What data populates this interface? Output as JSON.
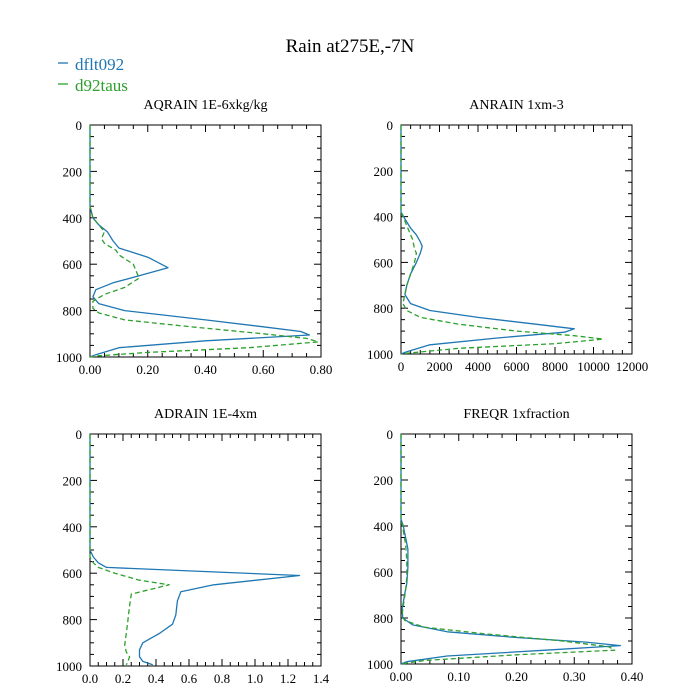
{
  "title": "Rain at275E,-7N",
  "colors": {
    "dflt092": "#1f77b4",
    "d92taus": "#2ca02c",
    "axis": "#000000"
  },
  "legend": [
    {
      "name": "dflt092",
      "color": "#1f77b4",
      "style": "solid"
    },
    {
      "name": "d92taus",
      "color": "#2ca02c",
      "style": "dashed"
    }
  ],
  "chart_data": [
    {
      "type": "line",
      "title": "AQRAIN  1E-6xkg/kg",
      "ylim": [
        1000,
        0
      ],
      "yticks": [
        0,
        200,
        400,
        600,
        800,
        1000
      ],
      "xlim": [
        0,
        0.8
      ],
      "xticks": [
        0,
        0.2,
        0.4,
        0.6,
        0.8
      ],
      "xticklabels": [
        "0.00",
        "0.20",
        "0.40",
        "0.60",
        "0.80"
      ],
      "series": [
        {
          "name": "dflt092",
          "x": [
            0,
            0,
            0.01,
            0.03,
            0.06,
            0.08,
            0.1,
            0.2,
            0.27,
            0.17,
            0.08,
            0.02,
            0.01,
            0.03,
            0.12,
            0.4,
            0.6,
            0.73,
            0.76,
            0.4,
            0.1,
            0.02,
            0
          ],
          "y": [
            0,
            350,
            400,
            430,
            460,
            500,
            530,
            570,
            615,
            650,
            680,
            710,
            740,
            770,
            800,
            840,
            870,
            890,
            905,
            930,
            960,
            990,
            1000
          ]
        },
        {
          "name": "d92taus",
          "x": [
            0,
            0,
            0.01,
            0.03,
            0.05,
            0.04,
            0.05,
            0.09,
            0.1,
            0.15,
            0.17,
            0.12,
            0.05,
            0.01,
            0.01,
            0.03,
            0.12,
            0.35,
            0.6,
            0.75,
            0.79,
            0.55,
            0.2,
            0.03,
            0
          ],
          "y": [
            0,
            350,
            400,
            430,
            460,
            490,
            510,
            540,
            560,
            600,
            660,
            700,
            730,
            760,
            790,
            810,
            840,
            870,
            900,
            920,
            935,
            960,
            980,
            995,
            1000
          ]
        }
      ]
    },
    {
      "type": "line",
      "title": "ANRAIN  1xm-3",
      "ylim": [
        1000,
        0
      ],
      "yticks": [
        0,
        200,
        400,
        600,
        800,
        1000
      ],
      "xlim": [
        0,
        12000
      ],
      "xticks": [
        0,
        2000,
        4000,
        6000,
        8000,
        10000,
        12000
      ],
      "xticklabels": [
        "0",
        "2000",
        "4000",
        "6000",
        "8000",
        "10000",
        "12000"
      ],
      "series": [
        {
          "name": "dflt092",
          "x": [
            0,
            0,
            200,
            500,
            800,
            1000,
            1100,
            1000,
            800,
            500,
            300,
            200,
            500,
            1500,
            4000,
            7000,
            9000,
            8500,
            5000,
            1500,
            300,
            0
          ],
          "y": [
            0,
            380,
            410,
            450,
            480,
            510,
            530,
            560,
            600,
            650,
            700,
            740,
            780,
            810,
            840,
            870,
            890,
            905,
            930,
            960,
            990,
            1000
          ]
        },
        {
          "name": "d92taus",
          "x": [
            0,
            0,
            200,
            400,
            600,
            700,
            800,
            700,
            500,
            300,
            200,
            100,
            300,
            1000,
            3000,
            6000,
            9000,
            10500,
            8000,
            3000,
            500,
            0
          ],
          "y": [
            0,
            380,
            420,
            460,
            500,
            540,
            560,
            600,
            650,
            700,
            740,
            780,
            810,
            840,
            870,
            900,
            920,
            935,
            955,
            975,
            995,
            1000
          ]
        }
      ]
    },
    {
      "type": "line",
      "title": "ADRAIN  1E-4xm",
      "ylim": [
        1000,
        0
      ],
      "yticks": [
        0,
        200,
        400,
        600,
        800,
        1000
      ],
      "xlim": [
        0,
        1.4
      ],
      "xticks": [
        0,
        0.2,
        0.4,
        0.6,
        0.8,
        1.0,
        1.2,
        1.4
      ],
      "xticklabels": [
        "0.0",
        "0.2",
        "0.4",
        "0.6",
        "0.8",
        "1.0",
        "1.2",
        "1.4"
      ],
      "series": [
        {
          "name": "dflt092",
          "x": [
            0,
            0,
            0.02,
            0.05,
            0.1,
            0.6,
            1.27,
            0.75,
            0.55,
            0.53,
            0.52,
            0.5,
            0.42,
            0.32,
            0.3,
            0.3,
            0.32,
            0.38
          ],
          "y": [
            0,
            500,
            530,
            555,
            575,
            590,
            610,
            650,
            680,
            720,
            780,
            820,
            860,
            900,
            930,
            960,
            980,
            995
          ]
        },
        {
          "name": "d92taus",
          "x": [
            0,
            0,
            0.02,
            0.05,
            0.15,
            0.3,
            0.48,
            0.25,
            0.24,
            0.23,
            0.22,
            0.21,
            0.22,
            0.24,
            0.23,
            0.22
          ],
          "y": [
            0,
            530,
            555,
            575,
            600,
            630,
            650,
            690,
            740,
            800,
            860,
            910,
            940,
            960,
            980,
            995
          ]
        }
      ]
    },
    {
      "type": "line",
      "title": "FREQR  1xfraction",
      "ylim": [
        1000,
        0
      ],
      "yticks": [
        0,
        200,
        400,
        600,
        800,
        1000
      ],
      "xlim": [
        0,
        0.4
      ],
      "xticks": [
        0,
        0.1,
        0.2,
        0.3,
        0.4
      ],
      "xticklabels": [
        "0.00",
        "0.10",
        "0.20",
        "0.30",
        "0.40"
      ],
      "series": [
        {
          "name": "dflt092",
          "x": [
            0,
            0,
            0.004,
            0.008,
            0.012,
            0.012,
            0.01,
            0.006,
            0.002,
            0.003,
            0.02,
            0.08,
            0.2,
            0.32,
            0.38,
            0.25,
            0.08,
            0.01,
            0
          ],
          "y": [
            0,
            370,
            400,
            450,
            500,
            580,
            650,
            700,
            760,
            800,
            830,
            860,
            885,
            905,
            920,
            940,
            965,
            990,
            1000
          ]
        },
        {
          "name": "d92taus",
          "x": [
            0,
            0,
            0.004,
            0.008,
            0.01,
            0.01,
            0.008,
            0.005,
            0.002,
            0.006,
            0.04,
            0.15,
            0.28,
            0.36,
            0.37,
            0.2,
            0.04,
            0
          ],
          "y": [
            0,
            370,
            420,
            480,
            550,
            620,
            680,
            730,
            780,
            810,
            840,
            870,
            900,
            925,
            940,
            960,
            985,
            1000
          ]
        }
      ]
    }
  ]
}
